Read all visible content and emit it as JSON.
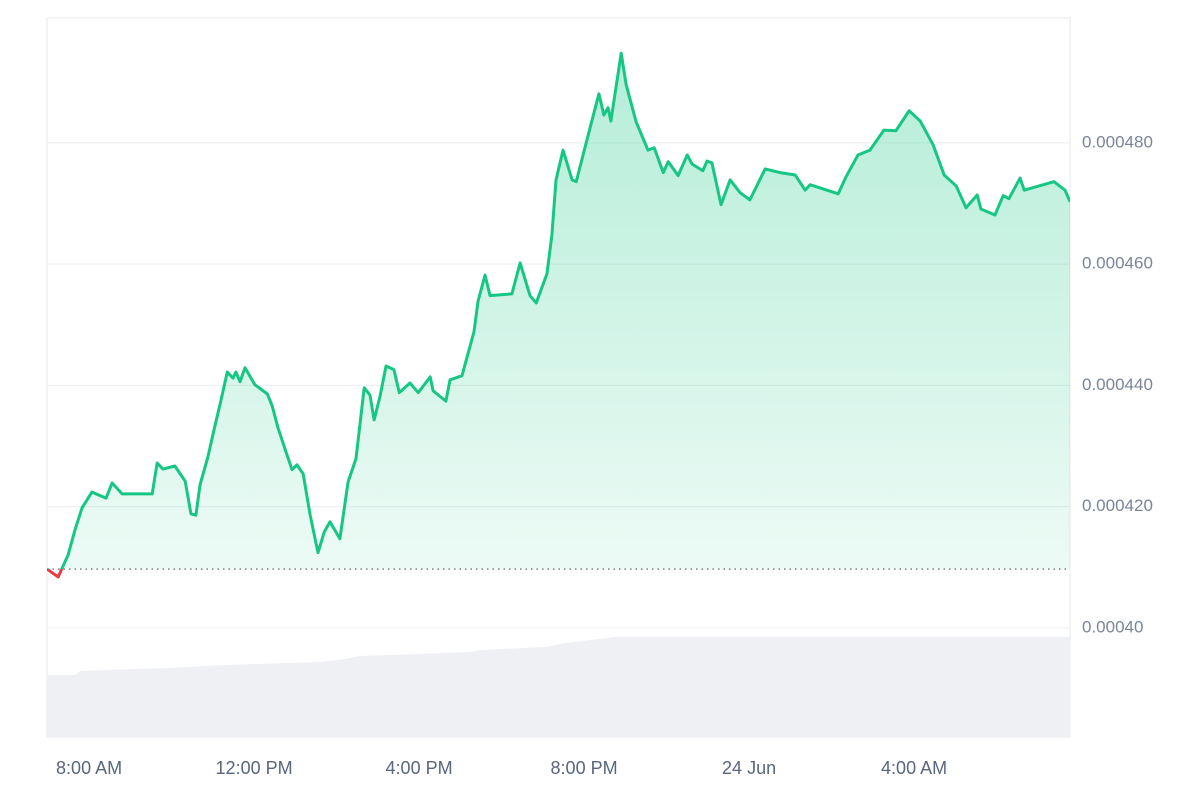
{
  "chart_data": {
    "type": "line",
    "color": "#16c784",
    "below_color": "#ea3943",
    "baseline": 0.0004097,
    "grid": true,
    "xlim": [
      6.98,
      31.78
    ],
    "xticks": [
      {
        "value": 8,
        "label": "8:00 AM"
      },
      {
        "value": 12,
        "label": "12:00 PM"
      },
      {
        "value": 16,
        "label": "4:00 PM"
      },
      {
        "value": 20,
        "label": "8:00 PM"
      },
      {
        "value": 24,
        "label": "24 Jun"
      },
      {
        "value": 28,
        "label": "4:00 AM"
      }
    ],
    "ylim": [
      0.000382,
      0.0005006
    ],
    "yticks": [
      {
        "value": 0.0004,
        "label": "0.00040"
      },
      {
        "value": 0.00042,
        "label": "0.000420"
      },
      {
        "value": 0.00044,
        "label": "0.000440"
      },
      {
        "value": 0.00046,
        "label": "0.000460"
      },
      {
        "value": 0.00048,
        "label": "0.000480"
      }
    ],
    "x": [
      6.98,
      7.25,
      7.49,
      7.66,
      7.83,
      8.07,
      8.41,
      8.56,
      8.8,
      9.53,
      9.65,
      9.79,
      10.08,
      10.33,
      10.47,
      10.59,
      10.69,
      10.88,
      11.03,
      11.2,
      11.35,
      11.49,
      11.56,
      11.66,
      11.78,
      12.02,
      12.32,
      12.44,
      12.58,
      12.78,
      12.92,
      13.04,
      13.19,
      13.36,
      13.55,
      13.7,
      13.84,
      14.08,
      14.28,
      14.47,
      14.67,
      14.81,
      14.91,
      15.05,
      15.2,
      15.39,
      15.52,
      15.78,
      15.98,
      16.27,
      16.34,
      16.65,
      16.75,
      17.04,
      17.33,
      17.43,
      17.6,
      17.72,
      18.25,
      18.45,
      18.69,
      18.84,
      19.1,
      19.22,
      19.32,
      19.49,
      19.71,
      19.81,
      20.1,
      20.36,
      20.48,
      20.58,
      20.65,
      20.9,
      21.02,
      21.26,
      21.55,
      21.7,
      21.92,
      22.04,
      22.28,
      22.5,
      22.62,
      22.88,
      22.98,
      23.1,
      23.32,
      23.54,
      23.78,
      24.02,
      24.39,
      24.75,
      25.12,
      25.36,
      25.48,
      26.16,
      26.35,
      26.64,
      26.93,
      27.27,
      27.56,
      27.88,
      28.15,
      28.46,
      28.73,
      29.02,
      29.26,
      29.53,
      29.62,
      29.96,
      30.16,
      30.3,
      30.57,
      30.67,
      31.39,
      31.66,
      31.78
    ],
    "values": [
      0.0004097,
      0.0004084,
      0.000412,
      0.0004162,
      0.0004198,
      0.0004224,
      0.0004214,
      0.0004239,
      0.0004221,
      0.0004221,
      0.0004272,
      0.0004262,
      0.0004267,
      0.0004242,
      0.0004188,
      0.0004186,
      0.0004236,
      0.0004282,
      0.0004327,
      0.0004376,
      0.0004422,
      0.0004412,
      0.0004422,
      0.0004406,
      0.0004429,
      0.0004401,
      0.0004386,
      0.0004366,
      0.000433,
      0.0004289,
      0.0004261,
      0.0004269,
      0.0004254,
      0.0004186,
      0.0004124,
      0.0004158,
      0.0004175,
      0.0004147,
      0.0004241,
      0.0004279,
      0.0004396,
      0.0004384,
      0.0004343,
      0.0004381,
      0.0004432,
      0.0004426,
      0.0004388,
      0.0004404,
      0.0004388,
      0.0004414,
      0.0004391,
      0.0004374,
      0.0004409,
      0.0004416,
      0.0004488,
      0.0004539,
      0.0004582,
      0.0004548,
      0.0004551,
      0.0004602,
      0.0004548,
      0.0004536,
      0.0004584,
      0.0004648,
      0.0004739,
      0.0004788,
      0.0004739,
      0.0004736,
      0.0004813,
      0.0004881,
      0.0004846,
      0.0004858,
      0.0004836,
      0.0004948,
      0.0004896,
      0.0004835,
      0.0004788,
      0.0004792,
      0.0004751,
      0.0004769,
      0.0004746,
      0.000478,
      0.0004765,
      0.0004754,
      0.000477,
      0.0004767,
      0.0004698,
      0.0004739,
      0.0004718,
      0.0004706,
      0.0004757,
      0.0004751,
      0.0004747,
      0.0004722,
      0.0004731,
      0.0004716,
      0.0004744,
      0.000478,
      0.0004788,
      0.0004821,
      0.000482,
      0.0004853,
      0.0004836,
      0.0004797,
      0.0004747,
      0.0004729,
      0.0004693,
      0.0004714,
      0.0004691,
      0.0004681,
      0.0004713,
      0.0004708,
      0.0004742,
      0.0004722,
      0.0004736,
      0.0004722,
      0.0004703
    ]
  }
}
